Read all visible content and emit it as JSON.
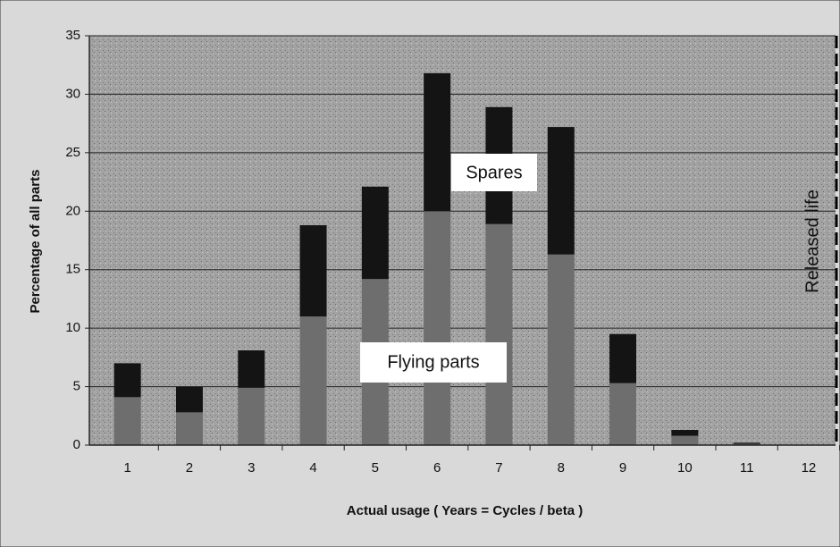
{
  "chart_data": {
    "type": "stacked_bar",
    "x_label": "Actual usage ( Years = Cycles / beta )",
    "y_label": "Percentage of all parts",
    "annotation": "Released life",
    "categories": [
      "1",
      "2",
      "3",
      "4",
      "5",
      "6",
      "7",
      "8",
      "9",
      "10",
      "11",
      "12"
    ],
    "series": [
      {
        "name": "Flying parts",
        "color": "#6e6e6e",
        "values": [
          4.1,
          2.8,
          4.9,
          11,
          14.2,
          20,
          18.9,
          16.3,
          5.3,
          0.8,
          0.1,
          0
        ]
      },
      {
        "name": "Spares",
        "color": "#141414",
        "values": [
          2.9,
          2.2,
          3.2,
          7.8,
          7.9,
          11.8,
          10,
          10.9,
          4.2,
          0.5,
          0.1,
          0
        ]
      }
    ],
    "ylim": [
      0,
      35
    ],
    "yticks": [
      0,
      5,
      10,
      15,
      20,
      25,
      30,
      35
    ],
    "grid": true
  }
}
